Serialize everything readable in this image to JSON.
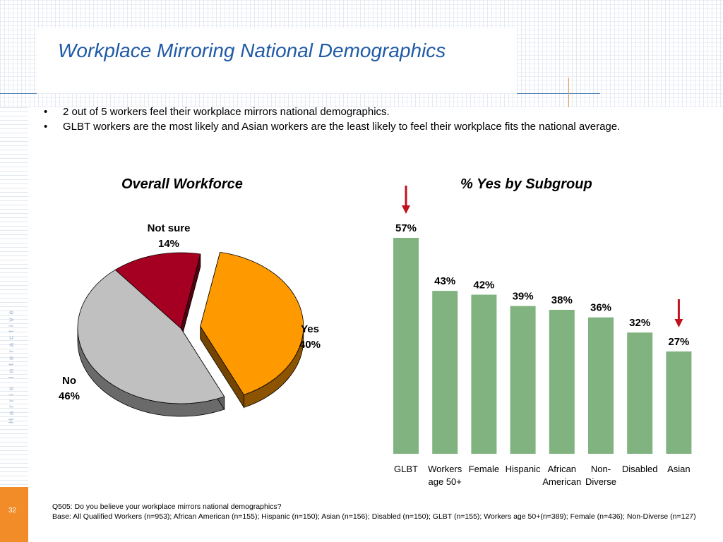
{
  "header": {
    "title": "Workplace Mirroring National Demographics",
    "brand": "Harris Interactive",
    "page_number": "32"
  },
  "bullets": [
    "2 out of 5 workers feel their workplace mirrors national demographics.",
    "GLBT workers are the most likely and Asian workers are the least likely to feel their workplace fits the national average."
  ],
  "footnote": {
    "question": "Q505: Do you believe your workplace mirrors national demographics?",
    "base": "Base: All Qualified Workers (n=953); African American (n=155); Hispanic (n=150); Asian (n=156); Disabled (n=150); GLBT (n=155); Workers age 50+(n=389); Female (n=436); Non-Diverse (n=127)"
  },
  "colors": {
    "yes": "#ff9900",
    "no": "#c0c0c0",
    "not_sure": "#a50021",
    "bar": "#80b380",
    "arrow": "#c0111f",
    "title": "#1f5aa6"
  },
  "chart_data": [
    {
      "type": "pie",
      "title": "Overall Workforce",
      "slices": [
        {
          "label": "Yes",
          "value": 40,
          "value_label": "40%",
          "exploded": true
        },
        {
          "label": "No",
          "value": 46,
          "value_label": "46%",
          "exploded": false
        },
        {
          "label": "Not sure",
          "value": 14,
          "value_label": "14%",
          "exploded": false
        }
      ]
    },
    {
      "type": "bar",
      "title": "% Yes by Subgroup",
      "categories": [
        [
          "GLBT"
        ],
        [
          "Workers",
          "age 50+"
        ],
        [
          "Female"
        ],
        [
          "Hispanic"
        ],
        [
          "African",
          "American"
        ],
        [
          "Non-",
          "Diverse"
        ],
        [
          "Disabled"
        ],
        [
          "Asian"
        ]
      ],
      "values": [
        57,
        43,
        42,
        39,
        38,
        36,
        32,
        27
      ],
      "value_labels": [
        "57%",
        "43%",
        "42%",
        "39%",
        "38%",
        "36%",
        "32%",
        "27%"
      ],
      "ylim": [
        0,
        60
      ],
      "highlighted": [
        "GLBT",
        "Asian"
      ]
    }
  ]
}
